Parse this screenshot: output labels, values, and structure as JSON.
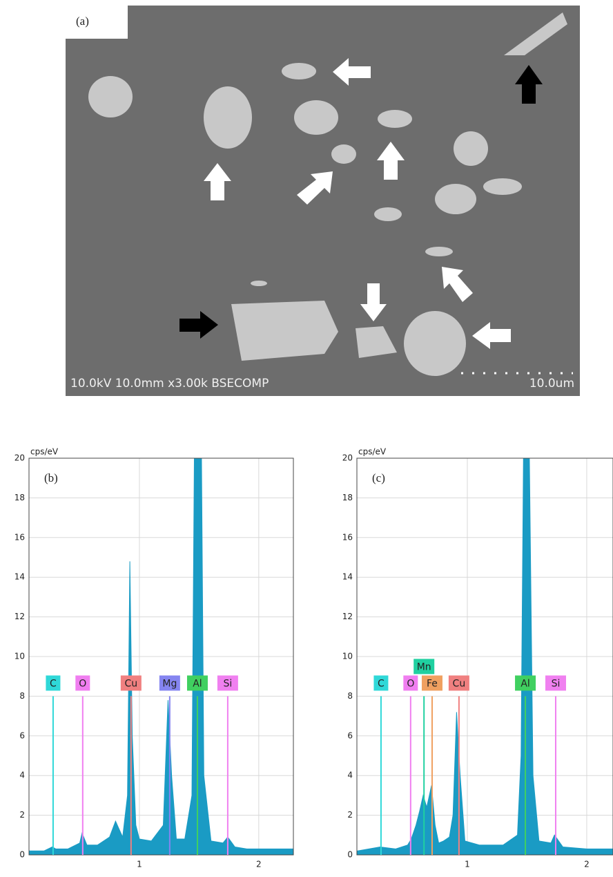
{
  "image_panel": {
    "label": "(a)",
    "caption": "10.0kV 10.0mm x3.00k BSECOMP",
    "scale_label": "10.0um"
  },
  "chart_data": [
    {
      "type": "area",
      "label": "(b)",
      "y_unit": "cps/eV",
      "color": "#1a9bc4",
      "xlim": [
        0.075,
        2.29
      ],
      "ylim": [
        0,
        20
      ],
      "xticks": [
        1,
        2
      ],
      "yticks": [
        0,
        2,
        4,
        6,
        8,
        10,
        12,
        14,
        16,
        18,
        20
      ],
      "grid": true,
      "x": [
        0.08,
        0.2,
        0.27,
        0.3,
        0.4,
        0.5,
        0.52,
        0.56,
        0.65,
        0.75,
        0.8,
        0.83,
        0.86,
        0.9,
        0.92,
        0.94,
        0.97,
        1.0,
        1.1,
        1.2,
        1.24,
        1.27,
        1.31,
        1.38,
        1.44,
        1.46,
        1.52,
        1.54,
        1.6,
        1.7,
        1.74,
        1.8,
        1.9,
        2.0,
        2.1,
        2.29
      ],
      "values": [
        0.2,
        0.2,
        0.4,
        0.3,
        0.3,
        0.6,
        1.1,
        0.5,
        0.5,
        0.9,
        1.7,
        1.3,
        0.9,
        3,
        14.8,
        6,
        1.5,
        0.8,
        0.7,
        1.5,
        7.8,
        4,
        0.8,
        0.8,
        3,
        20,
        20,
        4,
        0.7,
        0.6,
        0.9,
        0.4,
        0.3,
        0.3,
        0.3,
        0.3
      ],
      "markers": [
        {
          "label": "C",
          "x": 0.277,
          "height": 8,
          "color": "#2fd8d8"
        },
        {
          "label": "O",
          "x": 0.525,
          "height": 8,
          "color": "#f07ef0"
        },
        {
          "label": "Cu",
          "x": 0.93,
          "height": 8,
          "color": "#f08080"
        },
        {
          "label": "Mg",
          "x": 1.254,
          "height": 8,
          "color": "#8585f0"
        },
        {
          "label": "Al",
          "x": 1.486,
          "height": 8,
          "color": "#40d060"
        },
        {
          "label": "Si",
          "x": 1.74,
          "height": 8,
          "color": "#f080f0"
        }
      ]
    },
    {
      "type": "area",
      "label": "(c)",
      "y_unit": "cps/eV",
      "color": "#1a9bc4",
      "xlim": [
        0.075,
        2.22
      ],
      "ylim": [
        0,
        20
      ],
      "xticks": [
        1,
        2
      ],
      "yticks": [
        0,
        2,
        4,
        6,
        8,
        10,
        12,
        14,
        16,
        18,
        20
      ],
      "grid": true,
      "x": [
        0.08,
        0.27,
        0.4,
        0.5,
        0.53,
        0.57,
        0.6,
        0.63,
        0.66,
        0.7,
        0.73,
        0.76,
        0.8,
        0.85,
        0.88,
        0.91,
        0.94,
        0.98,
        1.1,
        1.3,
        1.42,
        1.45,
        1.47,
        1.52,
        1.55,
        1.6,
        1.7,
        1.73,
        1.8,
        2.0,
        2.22
      ],
      "values": [
        0.2,
        0.4,
        0.3,
        0.5,
        0.8,
        1.5,
        2.2,
        3.0,
        2.4,
        3.5,
        1.5,
        0.6,
        0.7,
        0.9,
        2,
        7.2,
        4,
        0.7,
        0.5,
        0.5,
        1,
        5,
        20,
        20,
        4,
        0.7,
        0.6,
        1.0,
        0.4,
        0.3,
        0.3
      ],
      "markers": [
        {
          "label": "C",
          "x": 0.277,
          "height": 8,
          "color": "#2fd8d8"
        },
        {
          "label": "O",
          "x": 0.525,
          "height": 8,
          "color": "#f07ef0"
        },
        {
          "label": "Mn",
          "x": 0.637,
          "height": 8,
          "color": "#20d0a0"
        },
        {
          "label": "Fe",
          "x": 0.705,
          "height": 8,
          "color": "#f0a060"
        },
        {
          "label": "Cu",
          "x": 0.93,
          "height": 8,
          "color": "#f08080"
        },
        {
          "label": "Al",
          "x": 1.486,
          "height": 8,
          "color": "#40d060"
        },
        {
          "label": "Si",
          "x": 1.74,
          "height": 8,
          "color": "#f080f0"
        }
      ]
    }
  ]
}
